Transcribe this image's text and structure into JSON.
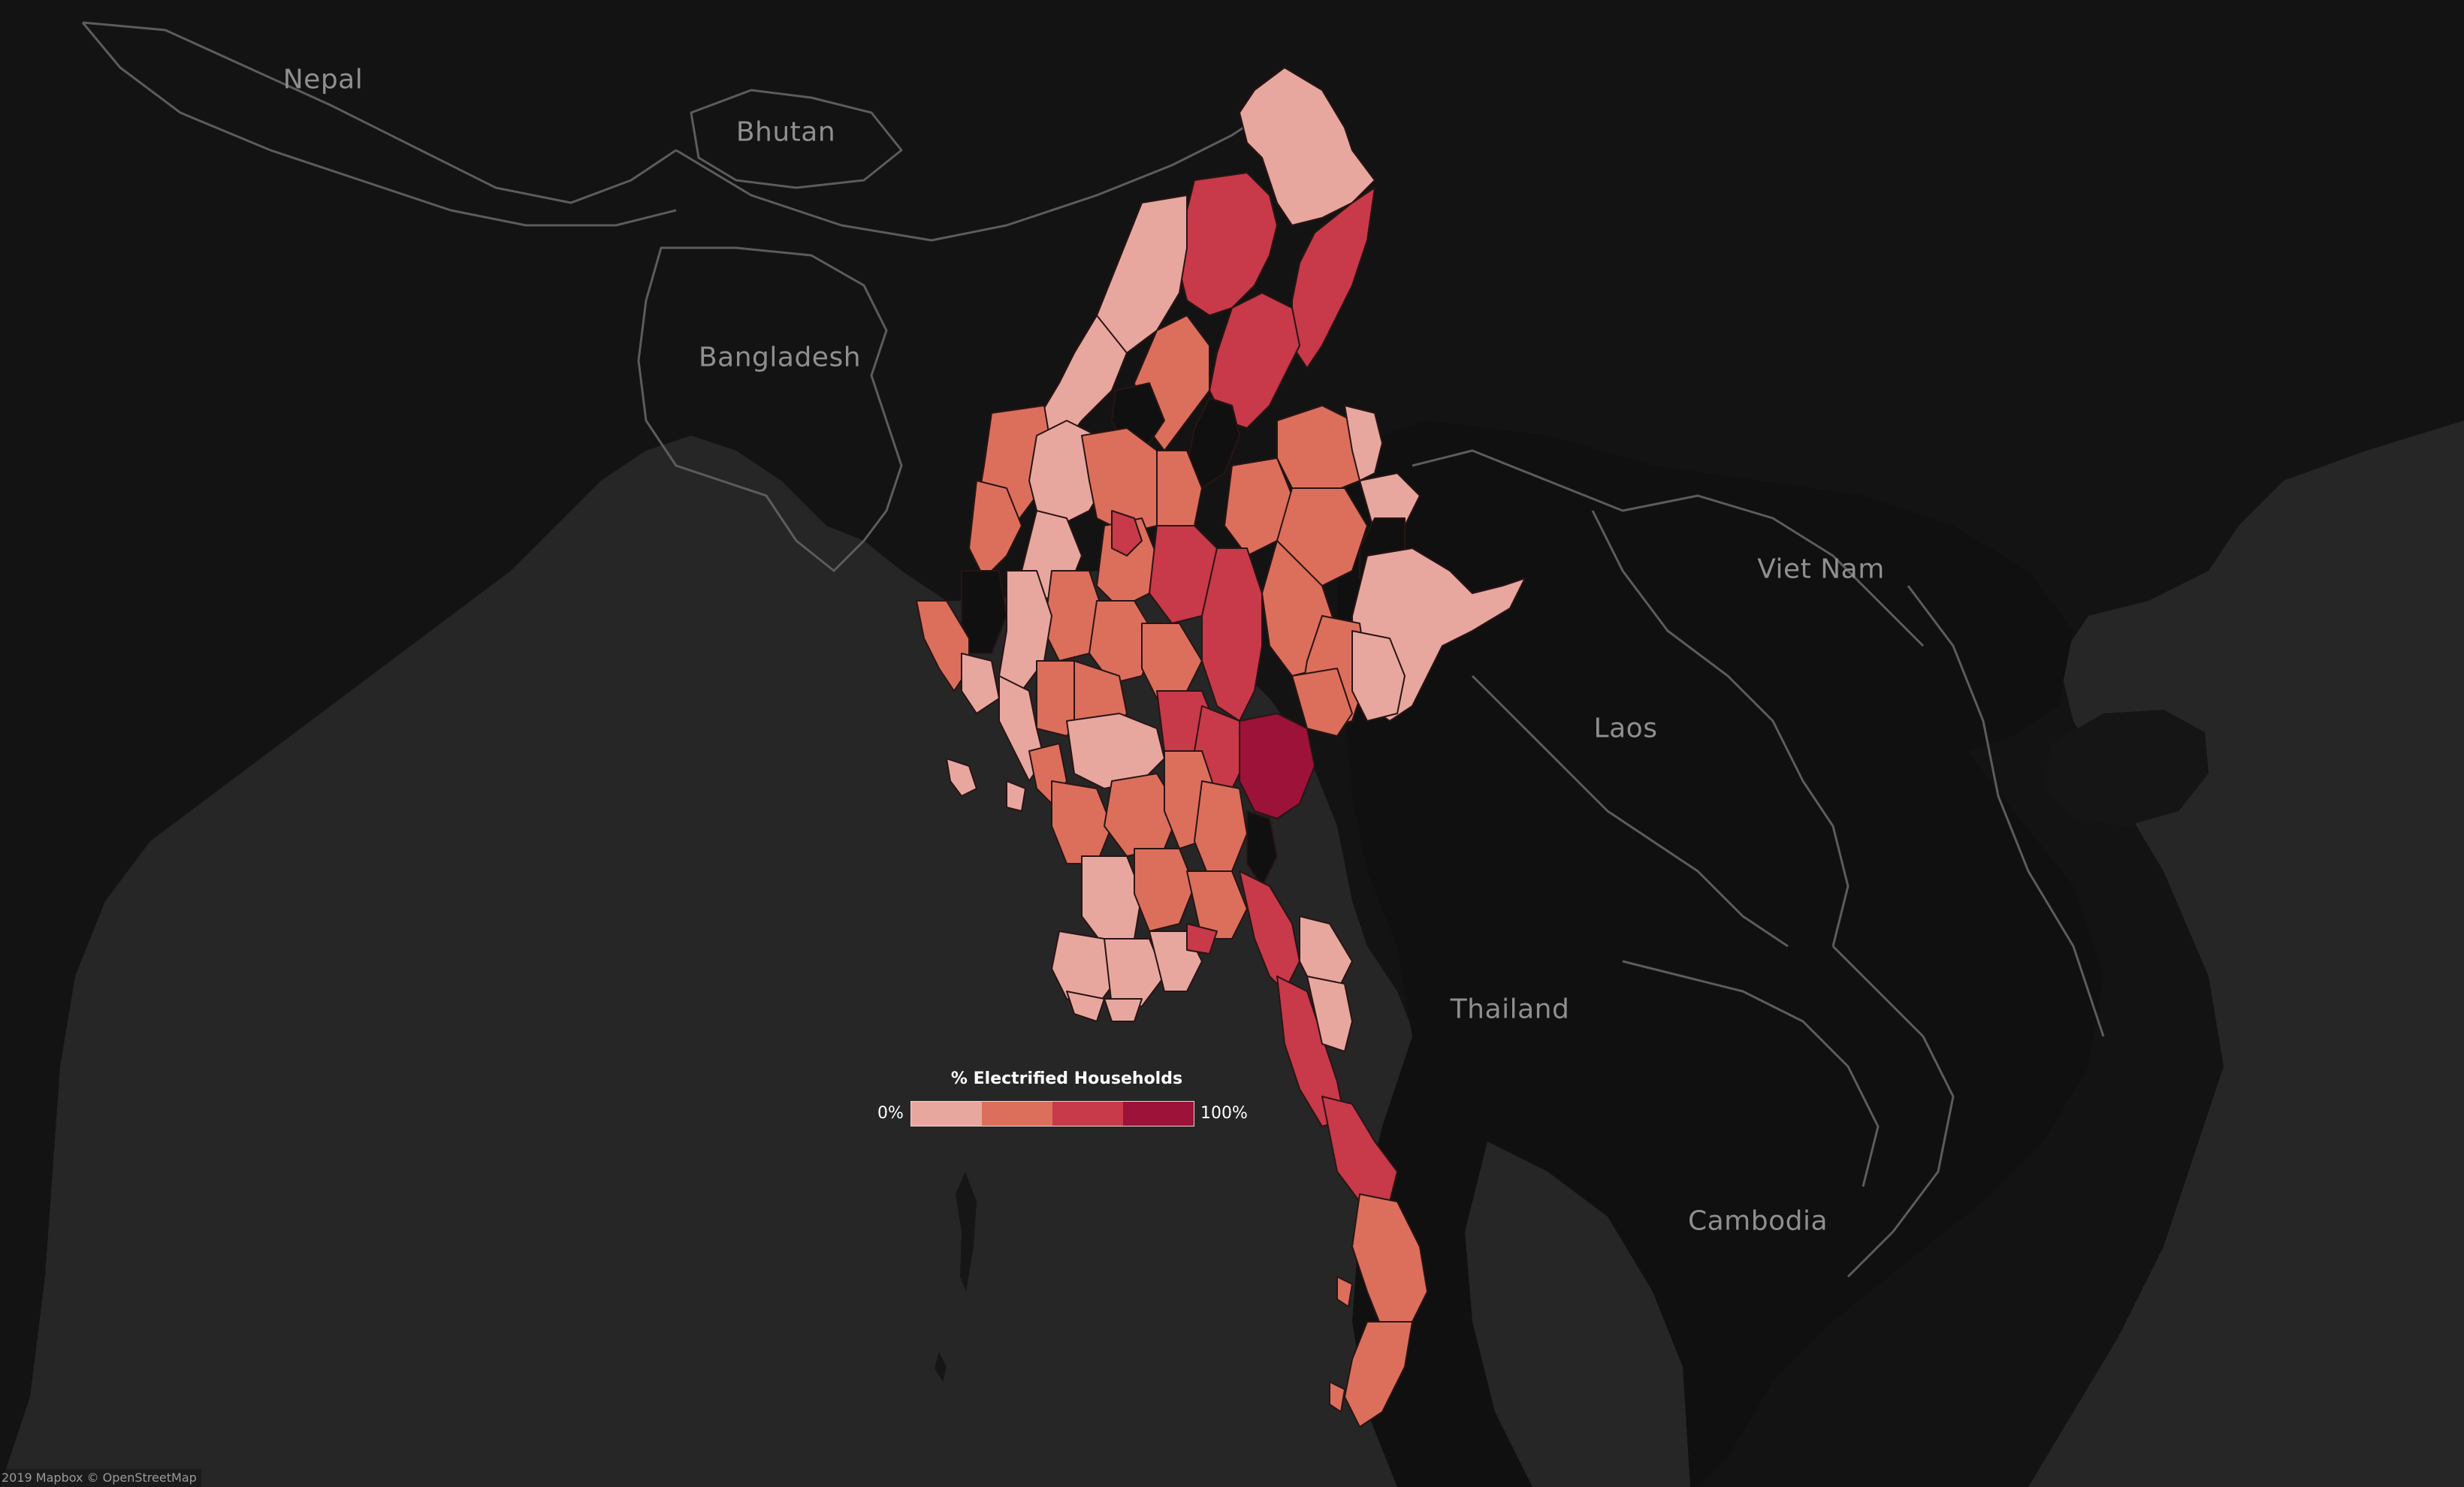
{
  "map": {
    "country_labels": [
      {
        "key": "nepal",
        "text": "Nepal"
      },
      {
        "key": "bhutan",
        "text": "Bhutan"
      },
      {
        "key": "bangladesh",
        "text": "Bangladesh"
      },
      {
        "key": "viet-nam",
        "text": "Viet Nam"
      },
      {
        "key": "laos",
        "text": "Laos"
      },
      {
        "key": "thailand",
        "text": "Thailand"
      },
      {
        "key": "cambodia",
        "text": "Cambodia"
      }
    ],
    "attribution": "2019 Mapbox © OpenStreetMap",
    "colors": {
      "ocean": "#262626",
      "land": "#111111",
      "borders": "#5a5a5a"
    }
  },
  "legend": {
    "title": "% Electrified Households",
    "min_label": "0%",
    "max_label": "100%",
    "colors": [
      "#e7a79f",
      "#dc6f5c",
      "#c8394a",
      "#9c1238"
    ]
  }
}
